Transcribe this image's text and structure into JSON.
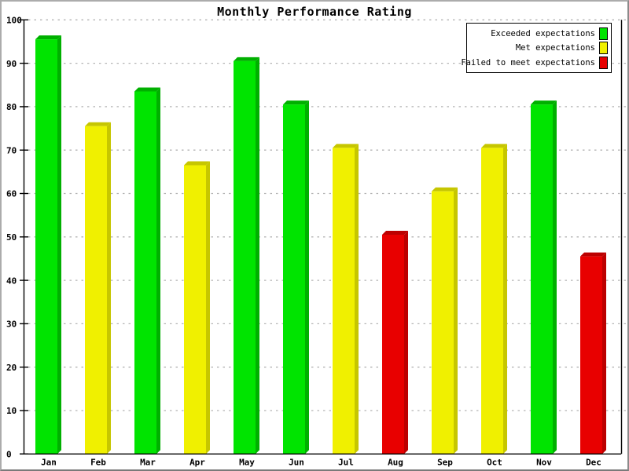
{
  "chart_data": {
    "type": "bar",
    "title": "Monthly Performance Rating",
    "categories": [
      "Jan",
      "Feb",
      "Mar",
      "Apr",
      "May",
      "Jun",
      "Jul",
      "Aug",
      "Sep",
      "Oct",
      "Nov",
      "Dec"
    ],
    "values": [
      95.5,
      75.5,
      83.5,
      66.5,
      90.5,
      80.5,
      70.5,
      50.5,
      60.5,
      70.5,
      80.5,
      45.5
    ],
    "statuses": [
      "exceeded",
      "met",
      "exceeded",
      "met",
      "exceeded",
      "exceeded",
      "met",
      "failed",
      "met",
      "met",
      "exceeded",
      "failed"
    ],
    "xlabel": "",
    "ylabel": "",
    "ylim": [
      0,
      100
    ],
    "yticks": [
      0,
      10,
      20,
      30,
      40,
      50,
      60,
      70,
      80,
      90,
      100
    ],
    "grid": "horizontal-dashed",
    "gridline_color": "#b4b4b4",
    "axis_color": "#000000",
    "legend_position": "top-right",
    "legend": [
      {
        "label": "Exceeded expectations",
        "status": "exceeded",
        "color": "#00e400"
      },
      {
        "label": "Met expectations",
        "status": "met",
        "color": "#f0f000"
      },
      {
        "label": "Failed to meet expectations",
        "status": "failed",
        "color": "#e80000"
      }
    ],
    "colors": {
      "exceeded": {
        "face": "#00e400",
        "side": "#00b000"
      },
      "met": {
        "face": "#f0f000",
        "side": "#c6c600"
      },
      "failed": {
        "face": "#e80000",
        "side": "#bc0000"
      }
    },
    "bar_style": "3d-bevel"
  }
}
